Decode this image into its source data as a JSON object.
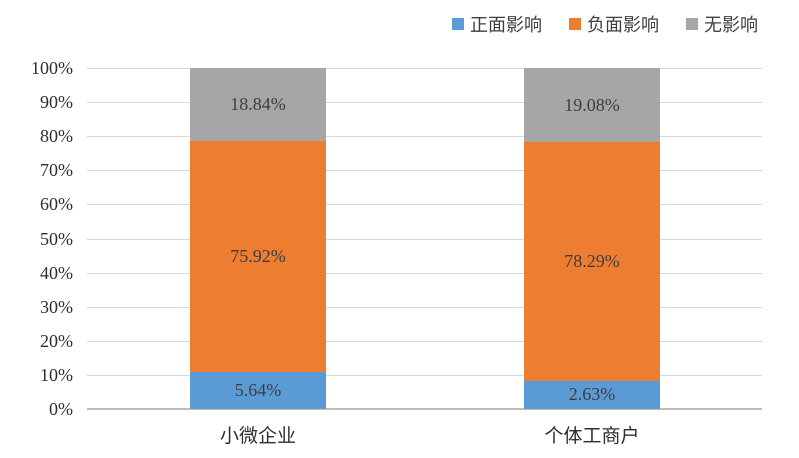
{
  "chart_data": {
    "type": "bar",
    "subtype": "stacked-100-percent-column",
    "categories": [
      "小微企业",
      "个体工商户"
    ],
    "series": [
      {
        "name": "正面影响",
        "color": "#5B9BD5",
        "values": [
          5.64,
          2.63
        ],
        "labels": [
          "5.64%",
          "2.63%"
        ]
      },
      {
        "name": "负面影响",
        "color": "#ED7D31",
        "values": [
          75.92,
          78.29
        ],
        "labels": [
          "75.92%",
          "78.29%"
        ]
      },
      {
        "name": "无影响",
        "color": "#A6A6A6",
        "values": [
          18.84,
          19.08
        ],
        "labels": [
          "18.84%",
          "19.08%"
        ]
      }
    ],
    "title": "",
    "xlabel": "",
    "ylabel": "",
    "ylim": [
      0,
      100
    ],
    "y_ticks": [
      "0%",
      "10%",
      "20%",
      "30%",
      "40%",
      "50%",
      "60%",
      "70%",
      "80%",
      "90%",
      "100%"
    ],
    "grid": true,
    "legend_position": "top",
    "gridline_color": "#D9D9D9",
    "axis_line_color": "#BDBDBD",
    "label_text_color": "#3D3D3D"
  }
}
